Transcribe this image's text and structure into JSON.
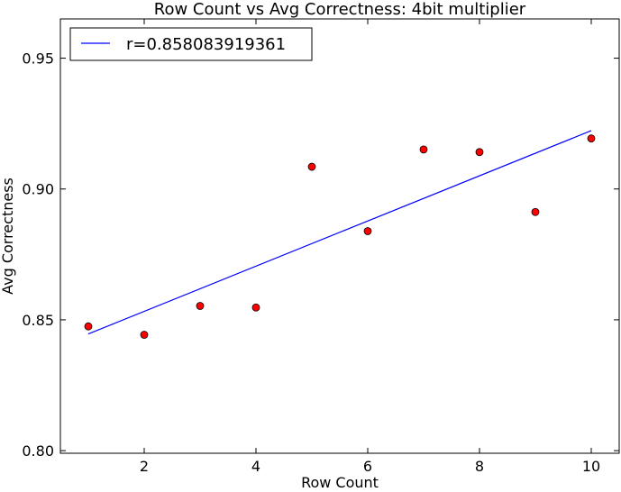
{
  "chart_data": {
    "type": "scatter",
    "title": "Row Count vs Avg Correctness: 4bit multiplier",
    "xlabel": "Row Count",
    "ylabel": "Avg Correctness",
    "xlim": [
      0.5,
      10.5
    ],
    "ylim": [
      0.799,
      0.965
    ],
    "xticks": [
      2,
      4,
      6,
      8,
      10
    ],
    "xtick_labels": [
      "2",
      "4",
      "6",
      "8",
      "10"
    ],
    "yticks": [
      0.8,
      0.85,
      0.9,
      0.95
    ],
    "ytick_labels": [
      "0.80",
      "0.85",
      "0.90",
      "0.95"
    ],
    "grid": false,
    "legend": {
      "placement": "top-left",
      "entries": [
        "r=0.858083919361"
      ]
    },
    "series": [
      {
        "kind": "points",
        "color": "#ff0000",
        "x": [
          1,
          2,
          3,
          4,
          5,
          6,
          7,
          8,
          9,
          10
        ],
        "y": [
          0.8475,
          0.8443,
          0.8553,
          0.8547,
          0.9085,
          0.8839,
          0.9151,
          0.9141,
          0.8912,
          0.9193
        ]
      },
      {
        "kind": "fit-line",
        "name": "r=0.858083919361",
        "color": "#0000ff",
        "x": [
          1,
          10
        ],
        "y": [
          0.8446,
          0.9223
        ]
      }
    ]
  }
}
